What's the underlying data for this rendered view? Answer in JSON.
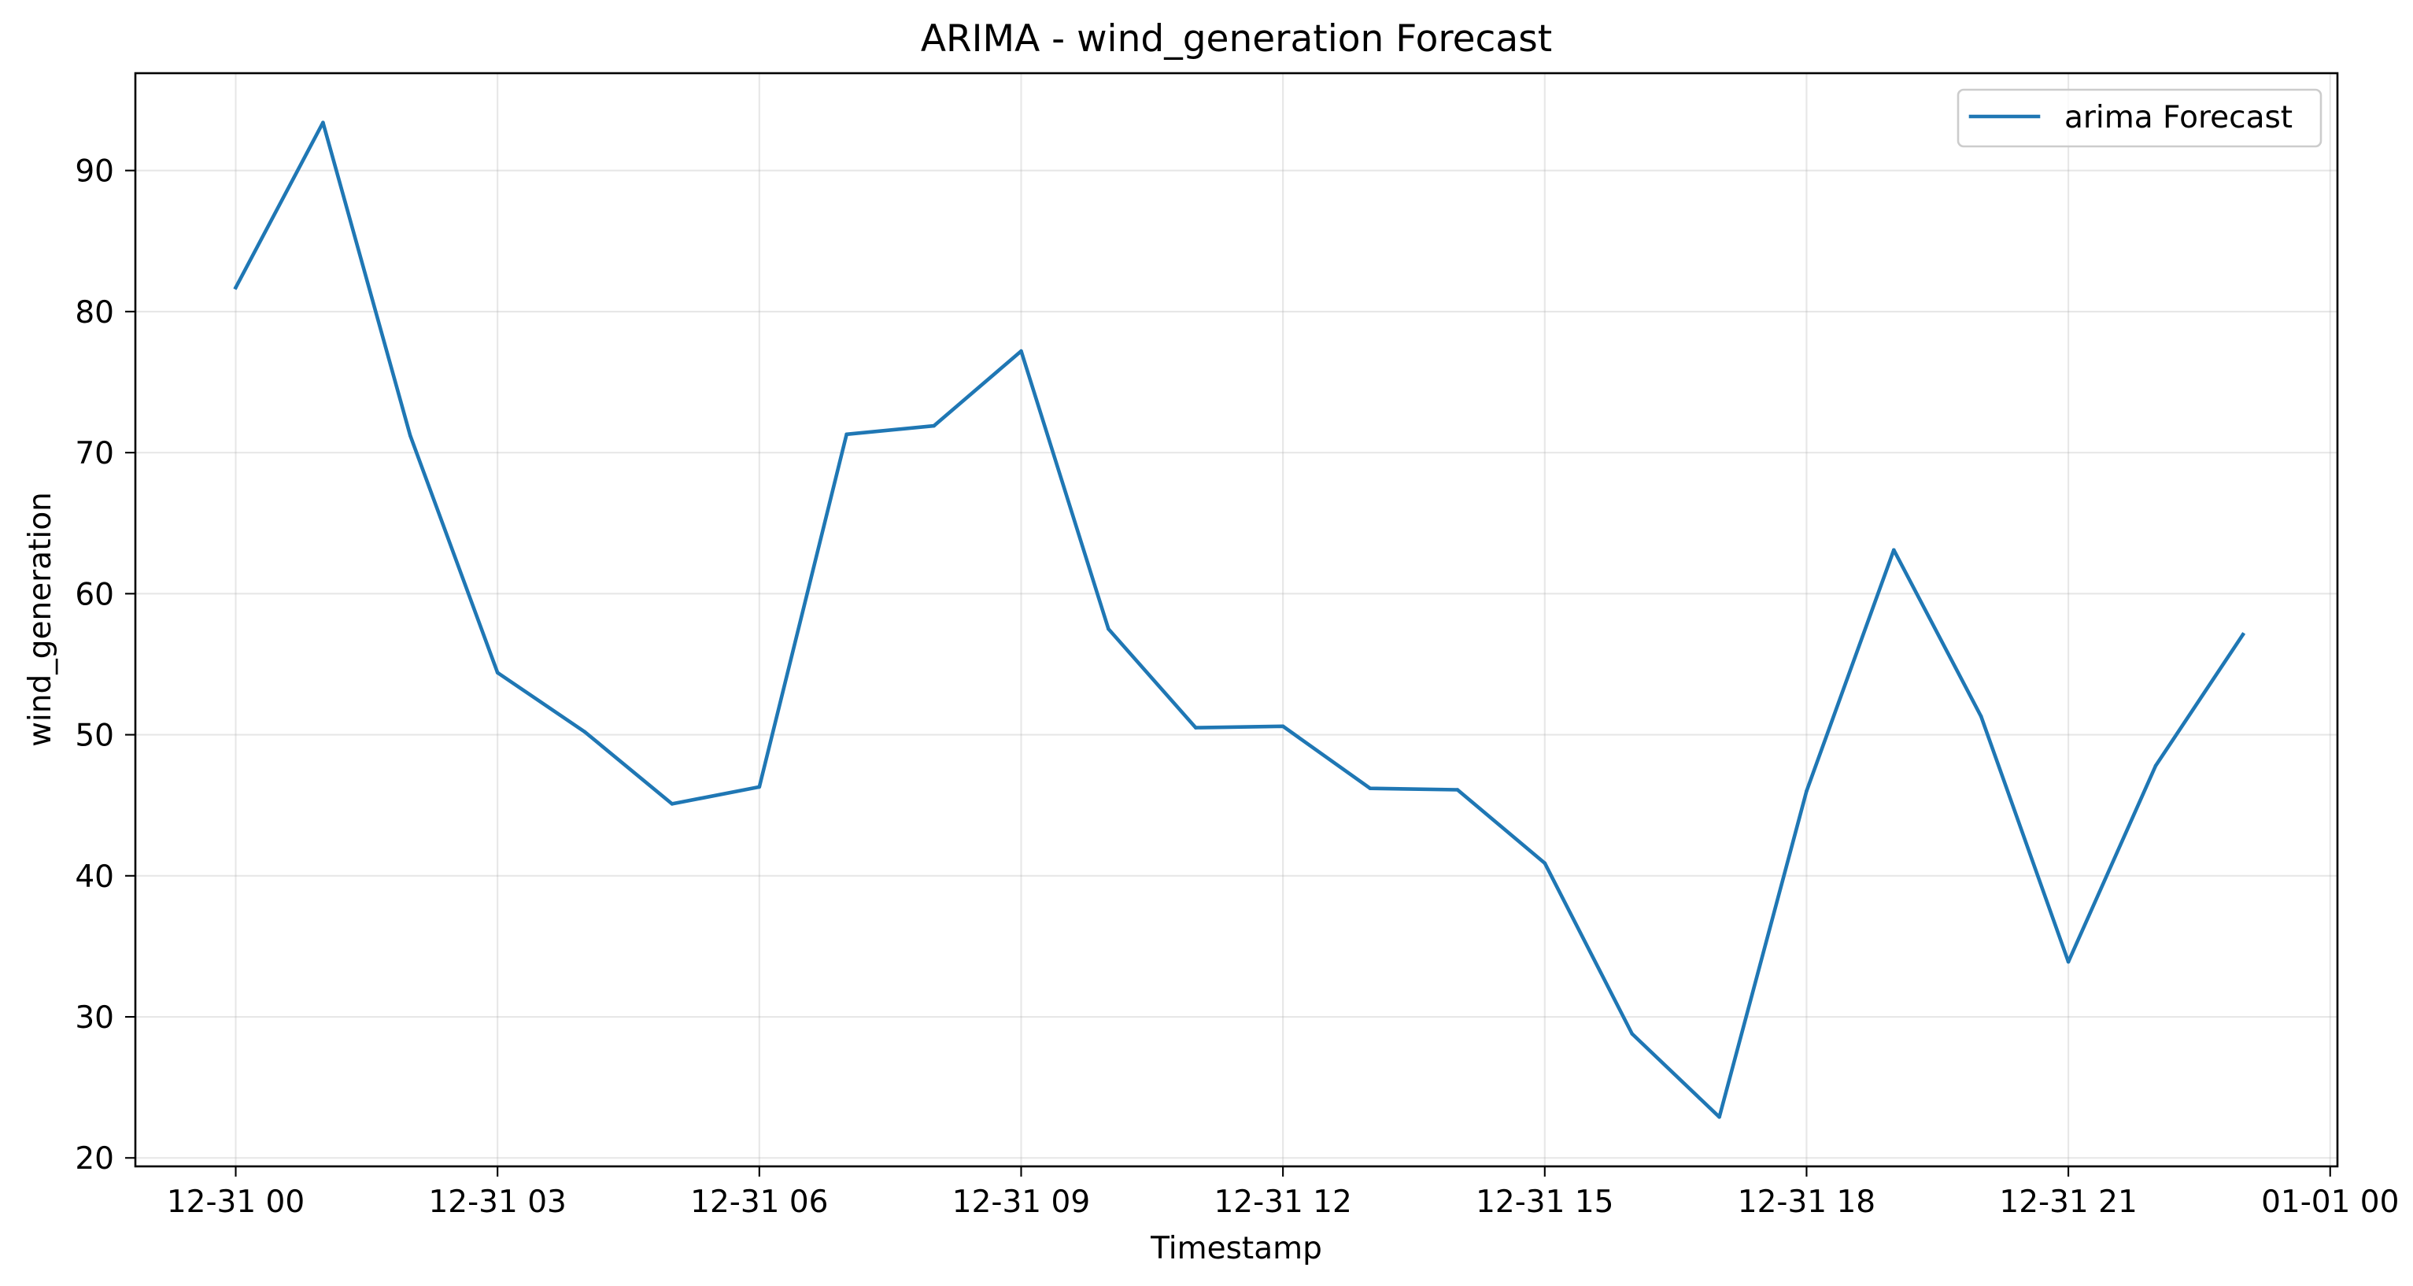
{
  "chart_data": {
    "type": "line",
    "title": "ARIMA - wind_generation Forecast",
    "xlabel": "Timestamp",
    "ylabel": "wind_generation",
    "x": [
      "12-31 00:00",
      "12-31 01:00",
      "12-31 02:00",
      "12-31 03:00",
      "12-31 04:00",
      "12-31 05:00",
      "12-31 06:00",
      "12-31 07:00",
      "12-31 08:00",
      "12-31 09:00",
      "12-31 10:00",
      "12-31 11:00",
      "12-31 12:00",
      "12-31 13:00",
      "12-31 14:00",
      "12-31 15:00",
      "12-31 16:00",
      "12-31 17:00",
      "12-31 18:00",
      "12-31 19:00",
      "12-31 20:00",
      "12-31 21:00",
      "12-31 22:00",
      "12-31 23:00"
    ],
    "series": [
      {
        "name": "arima Forecast",
        "color": "#1f77b4",
        "values": [
          81.7,
          93.4,
          71.2,
          54.4,
          50.2,
          45.1,
          46.3,
          71.3,
          71.9,
          77.2,
          57.5,
          50.5,
          50.6,
          46.2,
          46.1,
          40.9,
          28.8,
          22.9,
          46.0,
          63.1,
          51.3,
          33.9,
          47.8,
          57.1
        ]
      }
    ],
    "xticks": [
      "12-31 00",
      "12-31 03",
      "12-31 06",
      "12-31 09",
      "12-31 12",
      "12-31 15",
      "12-31 18",
      "12-31 21",
      "01-01 00"
    ],
    "yticks": [
      20,
      30,
      40,
      50,
      60,
      70,
      80,
      90
    ],
    "xlim": [
      "12-30 22:51",
      "01-01 00:05"
    ],
    "ylim": [
      19.4,
      96.9
    ],
    "grid": true,
    "legend_position": "top-right"
  }
}
